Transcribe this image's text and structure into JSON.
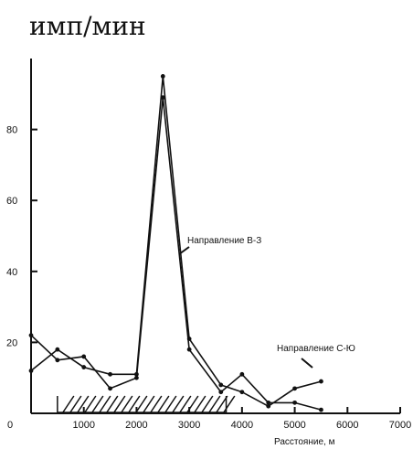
{
  "chart_data": {
    "type": "line",
    "title": "",
    "ylabel": "имп/мин",
    "xlabel": "Расстояние, м",
    "xlim": [
      0,
      7000
    ],
    "ylim": [
      0,
      100
    ],
    "x_ticks": [
      0,
      1000,
      2000,
      3000,
      4000,
      5000,
      6000,
      7000
    ],
    "y_ticks": [
      20,
      40,
      60,
      80
    ],
    "x_tick_labels": [
      "0",
      "1000",
      "2000",
      "3000",
      "4000",
      "5000",
      "6000",
      "7000"
    ],
    "y_tick_labels": [
      "20",
      "40",
      "60",
      "80"
    ],
    "grid": false,
    "legend": "none",
    "hatched_range": [
      500,
      3700
    ],
    "series": [
      {
        "name": "Направление В-З",
        "x": [
          0,
          500,
          1000,
          1500,
          2000,
          2500,
          3000,
          3600,
          4000,
          4500,
          5000,
          5500
        ],
        "y": [
          12,
          18,
          13,
          11,
          11,
          95,
          21,
          8,
          6,
          2,
          7,
          9
        ]
      },
      {
        "name": "Направление С-Ю",
        "x": [
          0,
          500,
          1000,
          1500,
          2000,
          2500,
          3000,
          3600,
          4000,
          4500,
          5000,
          5500
        ],
        "y": [
          22,
          15,
          16,
          7,
          10,
          89,
          18,
          6,
          11,
          3,
          3,
          1
        ]
      }
    ],
    "annotations": [
      {
        "text": "Направление В-З",
        "series": "Направление В-З"
      },
      {
        "text": "Направление С-Ю",
        "series": "Направление С-Ю"
      }
    ]
  }
}
